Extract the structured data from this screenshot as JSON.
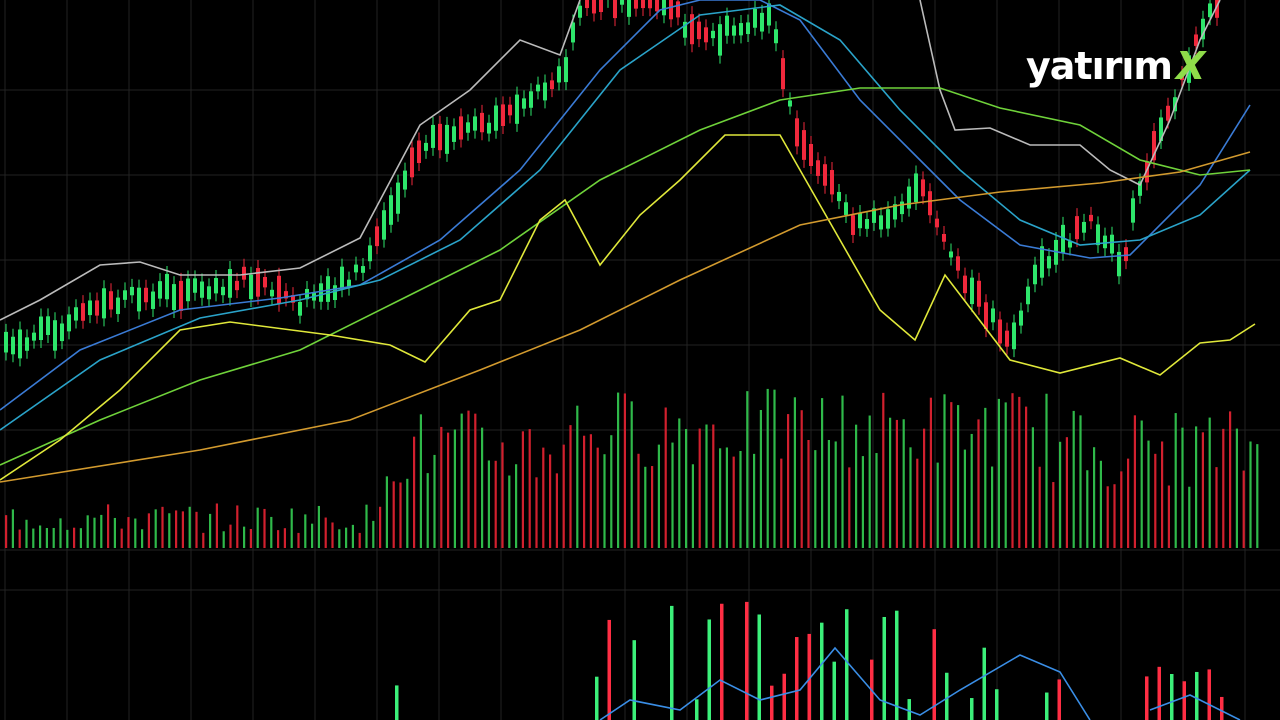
{
  "logo": {
    "name": "yatırım",
    "mark": "X"
  }
}
